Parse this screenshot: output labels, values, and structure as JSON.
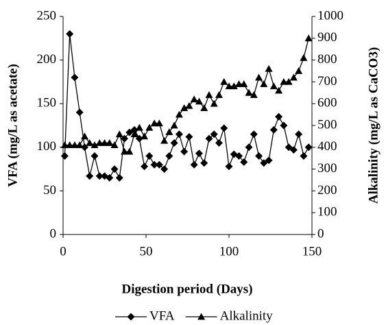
{
  "chart_data": {
    "type": "line",
    "x_label": "Digestion period (Days)",
    "y_label": "VFA (mg/L as acetate)",
    "y2_label": "Alkalinity (mg/L as CaCO3)",
    "x": [
      1,
      4,
      7,
      10,
      13,
      16,
      19,
      22,
      25,
      28,
      31,
      34,
      37,
      40,
      43,
      46,
      49,
      52,
      55,
      58,
      61,
      64,
      67,
      70,
      73,
      76,
      79,
      82,
      85,
      88,
      91,
      94,
      97,
      100,
      103,
      106,
      109,
      112,
      115,
      118,
      121,
      124,
      127,
      130,
      133,
      136,
      139,
      142,
      145,
      148
    ],
    "xlim": [
      0,
      150
    ],
    "xticks": [
      0,
      50,
      100,
      150
    ],
    "ylim": [
      0,
      250
    ],
    "yticks": [
      0,
      50,
      100,
      150,
      200,
      250
    ],
    "y2lim": [
      0,
      1000
    ],
    "y2ticks": [
      0,
      100,
      200,
      300,
      400,
      500,
      600,
      700,
      800,
      900,
      1000
    ],
    "series": [
      {
        "name": "VFA",
        "color": "#000000",
        "marker": "diamond",
        "values": [
          90,
          230,
          180,
          140,
          100,
          67,
          90,
          67,
          67,
          65,
          75,
          65,
          110,
          117,
          120,
          110,
          78,
          90,
          80,
          80,
          75,
          90,
          105,
          115,
          95,
          112,
          80,
          93,
          82,
          110,
          115,
          105,
          122,
          78,
          92,
          90,
          83,
          100,
          115,
          90,
          82,
          85,
          120,
          135,
          125,
          100,
          97,
          115,
          90,
          100
        ]
      },
      {
        "name": "Alkalinity",
        "color": "#000000",
        "marker": "triangle",
        "axis": "y2",
        "values": [
          410,
          410,
          410,
          410,
          450,
          420,
          410,
          420,
          420,
          420,
          410,
          460,
          380,
          380,
          460,
          490,
          450,
          490,
          510,
          510,
          430,
          470,
          500,
          550,
          580,
          590,
          620,
          610,
          580,
          640,
          600,
          640,
          700,
          680,
          680,
          690,
          690,
          650,
          640,
          720,
          690,
          760,
          680,
          660,
          700,
          700,
          720,
          750,
          810,
          900
        ]
      }
    ],
    "legend": "bottom"
  }
}
